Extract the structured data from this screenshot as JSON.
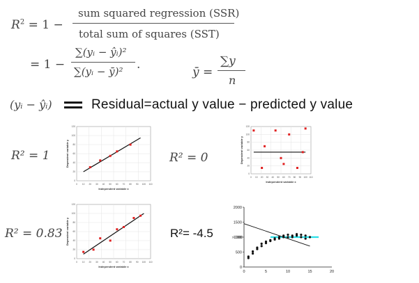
{
  "formula": {
    "lhs": "R",
    "lhs_exp": "2",
    "eq_one_minus": "= 1 −",
    "numerator": "sum squared regression (SSR)",
    "denominator": "total sum of squares (SST)",
    "line2_prefix": "= 1 −",
    "num2": "∑(yᵢ − ŷᵢ)²",
    "den2": "∑(yᵢ − ȳ)²",
    "period": ".",
    "ybar_lhs": "ȳ =",
    "ybar_num": "∑y",
    "ybar_den": "n"
  },
  "residual": {
    "term": "(yᵢ − ŷᵢ)",
    "text": "Residual=actual  y  value − predicted  y  value"
  },
  "labels": {
    "r2_1": "R² = 1",
    "r2_0": "R² = 0",
    "r2_083": "R² = 0.83",
    "r2_neg": "R²= -4.5"
  },
  "charts": {
    "xlabel": "Independent variable x",
    "ylabel": "Dependent variable y",
    "ticks_x": [
      "0",
      "10",
      "20",
      "30",
      "40",
      "50",
      "60",
      "70",
      "80",
      "90",
      "100",
      "110"
    ],
    "ticks_y": [
      "0",
      "20",
      "40",
      "60",
      "80",
      "100",
      "120"
    ],
    "last": {
      "yticks": [
        "2000",
        "1500",
        "1000",
        "500",
        "0"
      ],
      "xticks": [
        "0",
        "5",
        "10",
        "15",
        "20"
      ],
      "arrow_label": "> 1000"
    }
  },
  "chart_data": [
    {
      "type": "scatter",
      "title": "R² = 1",
      "xlabel": "Independent variable x",
      "ylabel": "Dependent variable y",
      "xlim": [
        0,
        110
      ],
      "ylim": [
        0,
        120
      ],
      "points": [
        [
          20,
          30
        ],
        [
          35,
          45
        ],
        [
          50,
          55
        ],
        [
          60,
          65
        ],
        [
          80,
          80
        ]
      ],
      "fit_line": [
        [
          10,
          20
        ],
        [
          95,
          95
        ]
      ]
    },
    {
      "type": "scatter",
      "title": "R² = 0",
      "xlabel": "Independent variable x",
      "ylabel": "Dependent variable y",
      "xlim": [
        0,
        110
      ],
      "ylim": [
        0,
        120
      ],
      "points": [
        [
          5,
          110
        ],
        [
          20,
          15
        ],
        [
          25,
          70
        ],
        [
          45,
          110
        ],
        [
          55,
          40
        ],
        [
          60,
          25
        ],
        [
          70,
          100
        ],
        [
          85,
          15
        ],
        [
          95,
          55
        ],
        [
          100,
          115
        ]
      ],
      "fit_line": [
        [
          5,
          55
        ],
        [
          100,
          55
        ]
      ]
    },
    {
      "type": "scatter",
      "title": "R² = 0.83",
      "xlabel": "Independent variable x",
      "ylabel": "Dependent variable y",
      "xlim": [
        0,
        110
      ],
      "ylim": [
        0,
        120
      ],
      "points": [
        [
          10,
          15
        ],
        [
          25,
          20
        ],
        [
          35,
          45
        ],
        [
          50,
          40
        ],
        [
          60,
          65
        ],
        [
          70,
          70
        ],
        [
          85,
          90
        ],
        [
          95,
          95
        ]
      ],
      "fit_line": [
        [
          10,
          10
        ],
        [
          100,
          100
        ]
      ]
    },
    {
      "type": "scatter",
      "title": "R²= -4.5",
      "xlim": [
        0,
        20
      ],
      "ylim": [
        0,
        2000
      ],
      "hline": 1000,
      "trend_line": [
        [
          0,
          1450
        ],
        [
          15,
          700
        ]
      ],
      "points": [
        [
          1,
          300
        ],
        [
          1,
          350
        ],
        [
          2,
          450
        ],
        [
          2,
          520
        ],
        [
          3,
          600
        ],
        [
          3,
          650
        ],
        [
          4,
          700
        ],
        [
          4,
          780
        ],
        [
          5,
          800
        ],
        [
          5,
          850
        ],
        [
          6,
          900
        ],
        [
          6,
          870
        ],
        [
          7,
          920
        ],
        [
          7,
          960
        ],
        [
          8,
          950
        ],
        [
          8,
          1000
        ],
        [
          9,
          1000
        ],
        [
          9,
          1050
        ],
        [
          10,
          1000
        ],
        [
          10,
          1080
        ],
        [
          11,
          1050
        ],
        [
          11,
          1000
        ],
        [
          12,
          1100
        ],
        [
          12,
          1050
        ],
        [
          13,
          1000
        ],
        [
          13,
          1080
        ],
        [
          14,
          1050
        ],
        [
          14,
          950
        ],
        [
          15,
          1000
        ]
      ]
    }
  ]
}
